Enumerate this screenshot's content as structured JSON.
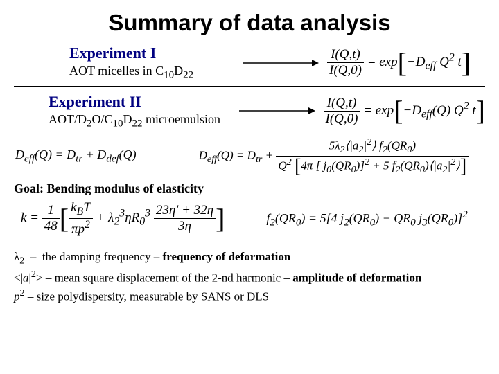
{
  "title": "Summary of data analysis",
  "exp1": {
    "heading": "Experiment I",
    "sub_html": "AOT micelles in C<sub>10</sub>D<sub>22</sub>"
  },
  "exp2": {
    "heading": "Experiment II",
    "sub_html": "AOT/D<sub>2</sub>O/C<sub>10</sub>D<sub>22</sub> microemulsion"
  },
  "eq1_html": "<span class='frac'><span class='num'>I(Q,t)</span><span class='den'>I(Q,0)</span></span> = exp<span class='bigbr'>[</span>&minus;D<sub>eff</sub> Q<sup>2</sup> t<span class='bigbr'>]</span>",
  "eq2_html": "<span class='frac'><span class='num'>I(Q,t)</span><span class='den'>I(Q,0)</span></span> = exp<span class='bigbr'>[</span>&minus;D<sub>eff</sub>(Q) Q<sup>2</sup> t<span class='bigbr'>]</span>",
  "deff_left_html": "D<sub>eff</sub>(Q) = D<sub>tr</sub> + D<sub>def</sub>(Q)",
  "deff_right_html": "D<sub>eff</sub>(Q) = D<sub>tr</sub> + <span class='frac'><span class='num'>5&lambda;<sub>2</sub>&#10216;|a<sub>2</sub>|<sup>2</sup>&#10217; f<sub>2</sub>(QR<sub>0</sub>)</span><span class='den'>Q<sup>2</sup> <span class='midbr'>[</span>4&pi; [ j<sub>0</sub>(QR<sub>0</sub>)]<sup>2</sup> + 5 f<sub>2</sub>(QR<sub>0</sub>)&#10216;|a<sub>2</sub>|<sup>2</sup>&#10217;<span class='midbr'>]</span></span></span>",
  "goal": "Goal: Bending modulus of elasticity",
  "k_eq_html": "k = <span class='frac'><span class='num'>1</span><span class='den'>48</span></span><span class='bigbr'>[</span><span class='frac'><span class='num'>k<sub>B</sub>T</span><span class='den'>&pi;p<sup>2</sup></span></span> + &lambda;<sub>2</sub><sup>3</sup>&eta;R<sub>0</sub><sup>3</sup> <span class='frac'><span class='num'>23&eta;' + 32&eta;</span><span class='den'>3&eta;</span></span><span class='bigbr'>]</span>",
  "f2_eq_html": "f<sub>2</sub>(QR<sub>0</sub>) = 5[4 j<sub>2</sub>(QR<sub>0</sub>) &minus; QR<sub>0</sub> j<sub>3</sub>(QR<sub>0</sub>)]<sup>2</sup>",
  "defs": {
    "l1_html": "&lambda;<sub>2</sub> &nbsp;&ndash;&nbsp; the damping frequency &ndash; <b>frequency of deformation</b>",
    "l2_html": "&lt;|<i>a</i>|<sup>2</sup>&gt; &ndash; mean square displacement of the 2-nd harmonic &ndash; <b>amplitude of deformation</b>",
    "l3_html": "<i>p</i><sup>2</sup> &ndash; size polydispersity, measurable by SANS or DLS"
  },
  "colors": {
    "heading": "#000080",
    "text": "#000000",
    "bg": "#ffffff"
  }
}
